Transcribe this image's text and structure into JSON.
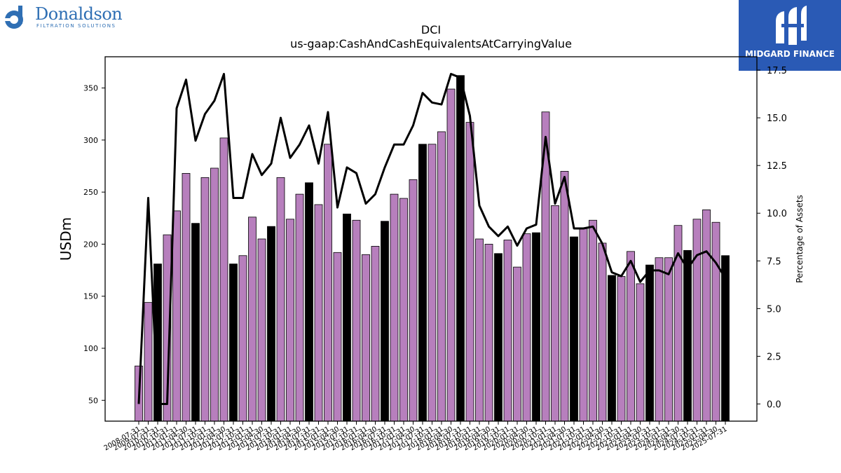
{
  "logos": {
    "left": {
      "name": "Donaldson",
      "tagline": "FILTRATION SOLUTIONS",
      "color": "#2f6fb4"
    },
    "right": {
      "name": "MIDGARD FINANCE",
      "background": "#2a5ab5"
    }
  },
  "chart_data": {
    "type": "bar",
    "title": "DCI",
    "subtitle": "us-gaap:CashAndCashEquivalentsAtCarryingValue",
    "ylabel": "USDm",
    "y2label": "Percentage of Assets",
    "ylim": [
      30,
      380
    ],
    "y2lim": [
      -0.9,
      18.2
    ],
    "yticks": [
      50,
      100,
      150,
      200,
      250,
      300,
      350
    ],
    "y2ticks": [
      0.0,
      2.5,
      5.0,
      7.5,
      10.0,
      12.5,
      15.0,
      17.5
    ],
    "colors": {
      "quarter": "#b77fbd",
      "fiscal_year": "#000000",
      "line": "#000000"
    },
    "x": [
      "2008-07-31",
      "2009-07-31",
      "2010-07-31",
      "2010-10-31",
      "2011-01-31",
      "2011-04-30",
      "2011-07-31",
      "2011-10-31",
      "2012-01-31",
      "2012-04-30",
      "2012-07-31",
      "2012-10-31",
      "2013-01-31",
      "2013-04-30",
      "2013-07-31",
      "2013-10-31",
      "2014-01-31",
      "2014-04-30",
      "2014-07-31",
      "2014-10-31",
      "2015-01-31",
      "2015-04-30",
      "2015-07-31",
      "2015-10-31",
      "2016-01-31",
      "2016-04-30",
      "2016-07-31",
      "2016-10-31",
      "2017-01-31",
      "2017-04-30",
      "2017-07-31",
      "2017-10-31",
      "2018-01-31",
      "2018-04-30",
      "2018-07-31",
      "2018-10-31",
      "2019-01-31",
      "2019-04-30",
      "2019-07-31",
      "2019-10-31",
      "2020-01-31",
      "2020-04-30",
      "2020-07-31",
      "2020-10-31",
      "2021-01-31",
      "2021-04-30",
      "2021-07-31",
      "2021-10-31",
      "2022-01-31",
      "2022-04-30",
      "2022-07-31",
      "2022-10-31",
      "2023-01-31",
      "2023-04-30",
      "2023-07-31",
      "2023-10-31",
      "2024-01-31",
      "2024-04-30",
      "2024-07-31",
      "2024-10-31",
      "2025-01-31",
      "2025-04-30",
      "2025-07-31"
    ],
    "xtick_labels": [
      "2008-07-31",
      "2009-07-31",
      "2010-07-31",
      "2010-10-31",
      "2011-01-31",
      "2011-04-30",
      "2011-07-31",
      "2011-10-31",
      "2012-01-31",
      "2012-04-30",
      "2012-07-31",
      "2012-10-31",
      "2013-01-31",
      "2013-04-30",
      "2013-07-31",
      "2013-10-31",
      "2014-01-31",
      "2014-04-30",
      "2014-07-31",
      "2014-10-31",
      "2015-01-31",
      "2015-04-30",
      "2015-07-31",
      "2015-10-31",
      "2016-01-31",
      "2016-04-30",
      "2016-07-31",
      "2016-10-31",
      "2017-01-31",
      "2017-04-30",
      "2017-07-31",
      "2017-10-31",
      "2018-01-31",
      "2018-04-30",
      "2018-07-31",
      "2018-10-31",
      "2019-01-31",
      "2019-04-30",
      "2019-07-31",
      "2019-10-31",
      "2020-01-31",
      "2020-04-30",
      "2020-07-31",
      "2020-10-31",
      "2021-01-31",
      "2021-04-30",
      "2021-07-31",
      "2021-10-31",
      "2022-01-31",
      "2022-04-30",
      "2022-07-31",
      "2022-10-31",
      "2023-01-31",
      "2023-04-30",
      "2023-07-31",
      "2023-10-31",
      "2024-01-31",
      "2024-04-30",
      "2024-07-31",
      "2024-10-31",
      "2025-01-31",
      "2025-04-30",
      "2025-07-31"
    ],
    "values": [
      83,
      144,
      181,
      209,
      232,
      268,
      220,
      264,
      273,
      302,
      181,
      189,
      226,
      205,
      217,
      264,
      224,
      248,
      259,
      238,
      296,
      192,
      229,
      223,
      190,
      198,
      222,
      248,
      244,
      262,
      296,
      296,
      308,
      349,
      362,
      317,
      205,
      200,
      191,
      204,
      178,
      210,
      211,
      327,
      237,
      270,
      207,
      215,
      223,
      201,
      170,
      169,
      193,
      162,
      180,
      187,
      187,
      218,
      194,
      224,
      233,
      221,
      189
    ],
    "fiscal_year_end": [
      false,
      false,
      true,
      false,
      false,
      false,
      true,
      false,
      false,
      false,
      true,
      false,
      false,
      false,
      true,
      false,
      false,
      false,
      true,
      false,
      false,
      false,
      true,
      false,
      false,
      false,
      true,
      false,
      false,
      false,
      true,
      false,
      false,
      false,
      true,
      false,
      false,
      false,
      true,
      false,
      false,
      false,
      true,
      false,
      false,
      false,
      true,
      false,
      false,
      false,
      true,
      false,
      false,
      false,
      true,
      false,
      false,
      false,
      true,
      false,
      false,
      false,
      true
    ],
    "pct_of_assets": [
      0.0,
      10.8,
      0.0,
      0.0,
      15.5,
      17.0,
      13.8,
      15.2,
      15.9,
      17.3,
      10.8,
      10.8,
      13.1,
      12.0,
      12.6,
      15.0,
      12.9,
      13.6,
      14.6,
      12.6,
      15.3,
      10.3,
      12.4,
      12.1,
      10.5,
      11.0,
      12.4,
      13.6,
      13.6,
      14.6,
      16.3,
      15.8,
      15.7,
      17.3,
      17.1,
      15.1,
      10.4,
      9.3,
      8.8,
      9.3,
      8.3,
      9.2,
      9.4,
      14.0,
      10.5,
      11.9,
      9.2,
      9.2,
      9.3,
      8.4,
      6.9,
      6.7,
      7.5,
      6.4,
      7.0,
      7.0,
      6.8,
      7.9,
      7.1,
      7.8,
      8.0,
      7.4,
      6.6
    ]
  }
}
